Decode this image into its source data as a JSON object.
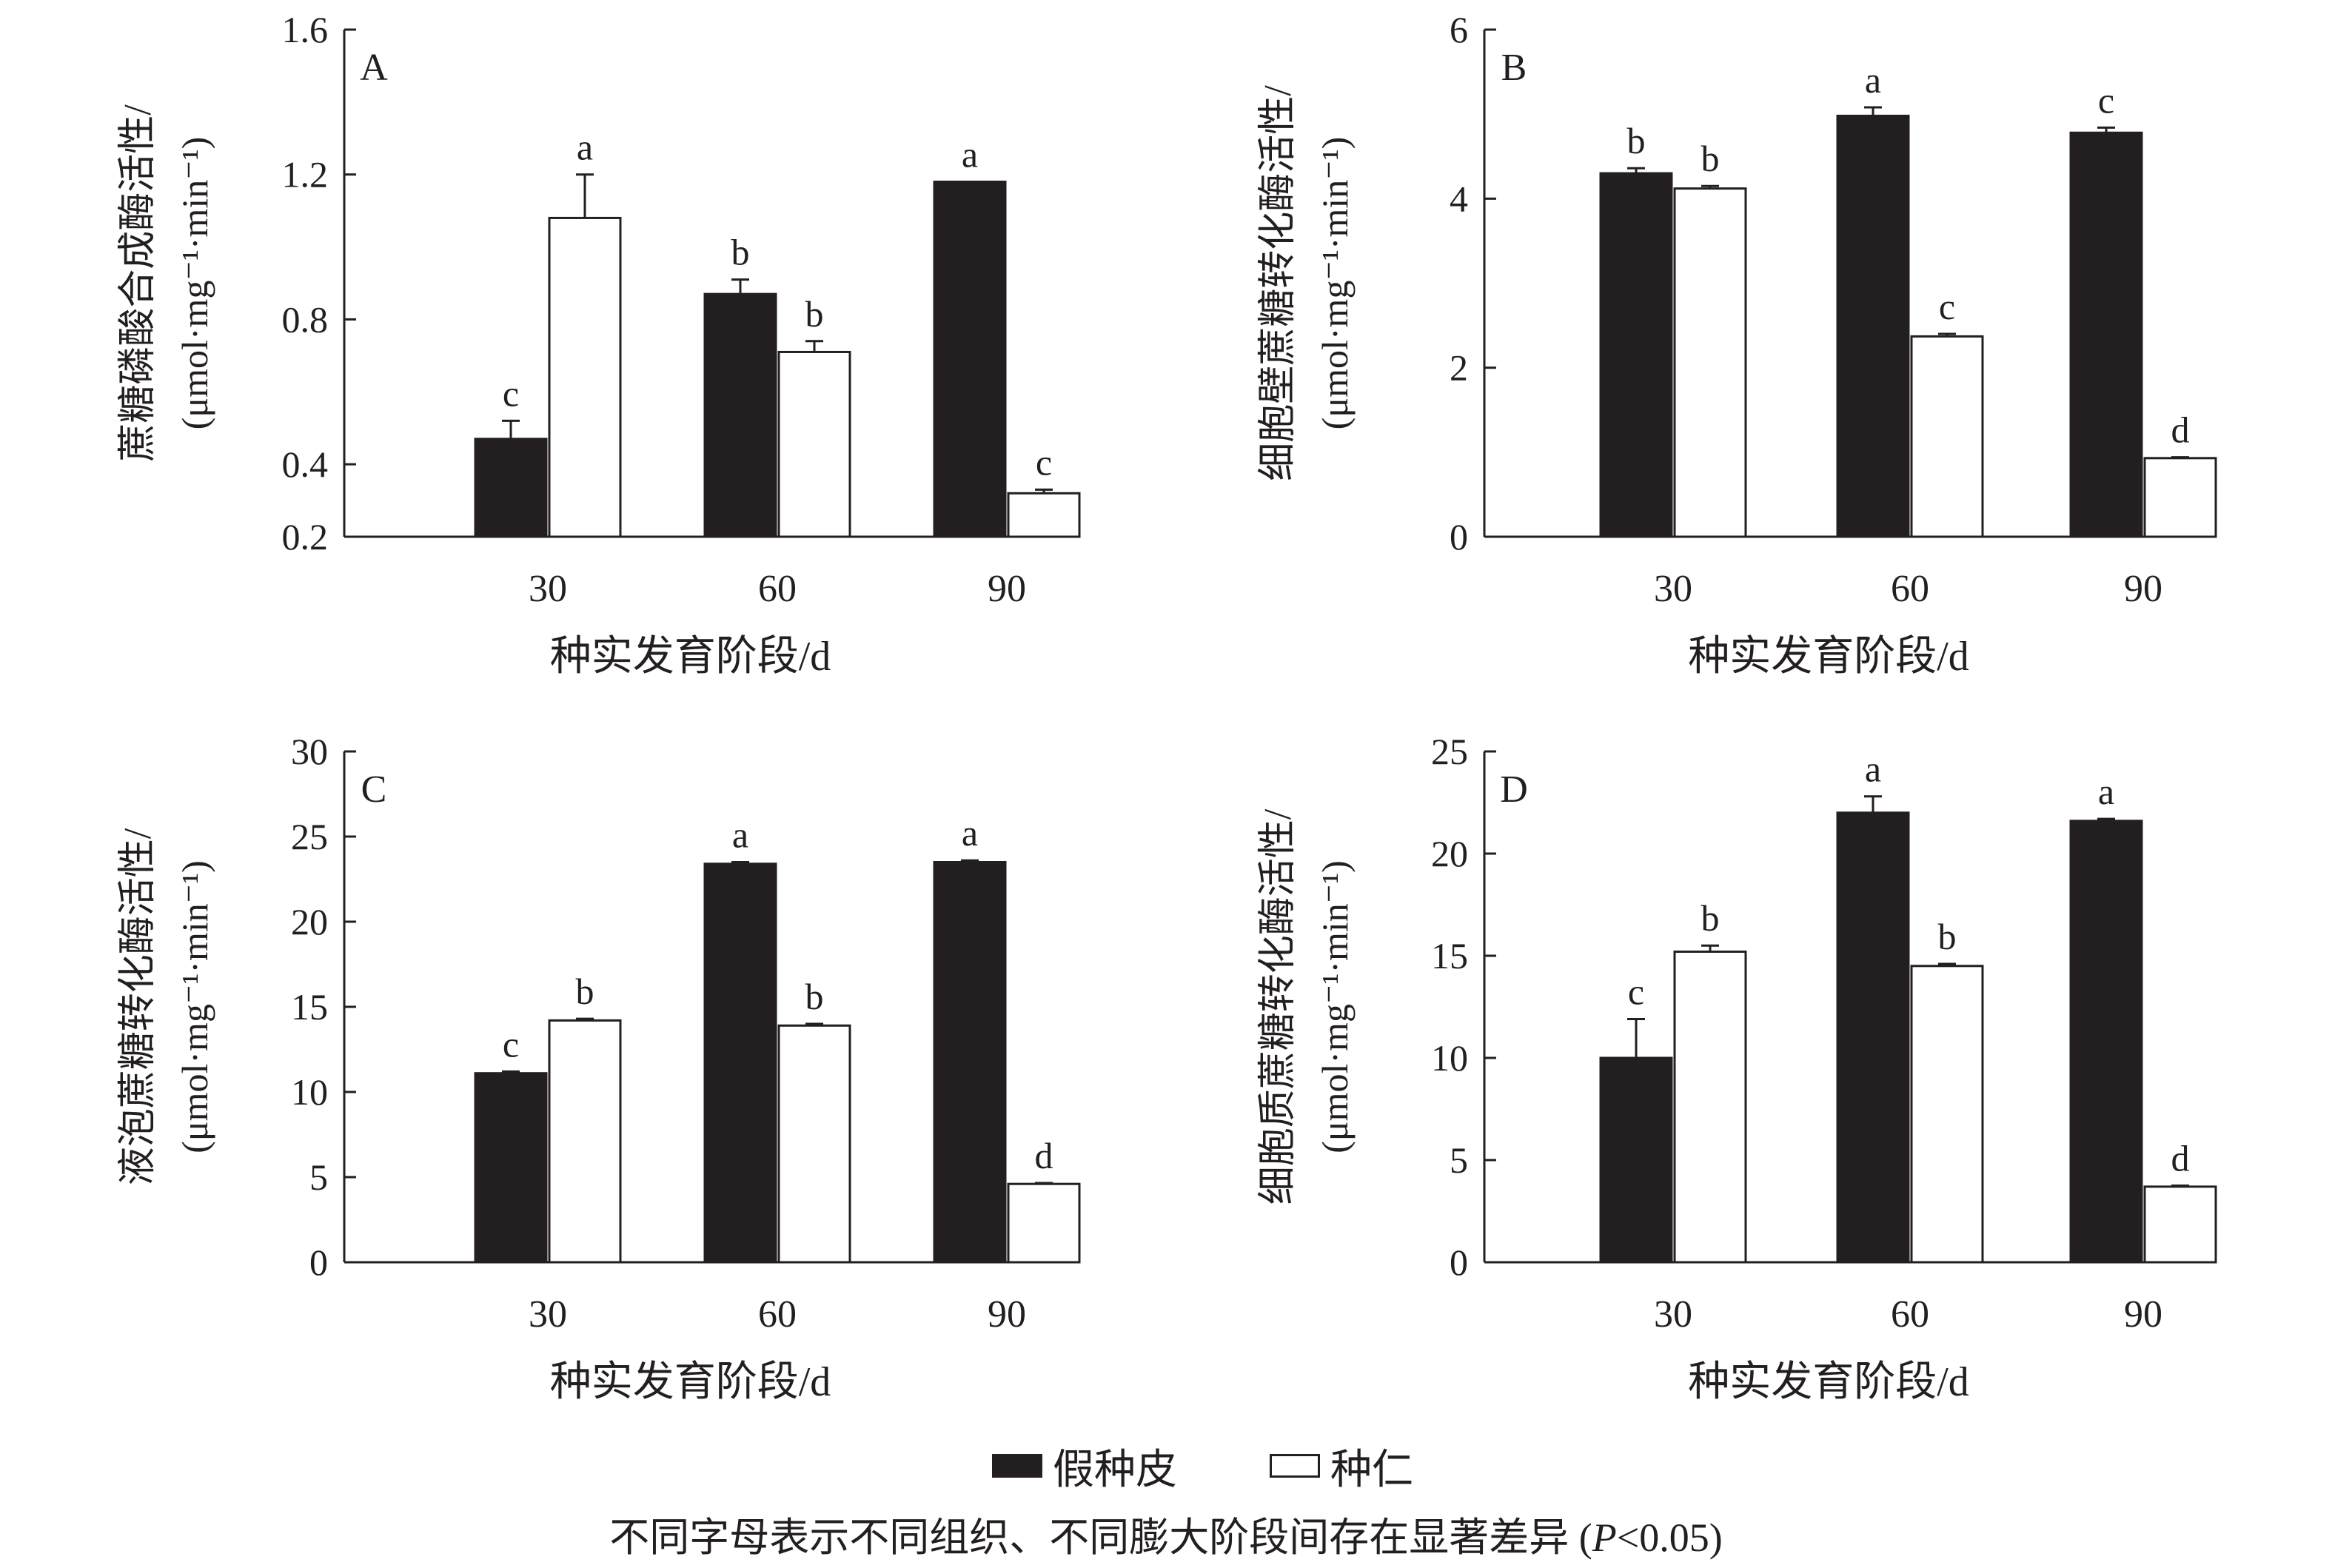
{
  "chart_data": [
    {
      "type": "bar",
      "panel_label": "A",
      "ylabel_line1": "蔗糖磷酸合成酶活性/",
      "ylabel_line2": "(μmol·mg⁻¹·min⁻¹)",
      "xlabel": "种实发育阶段/d",
      "categories": [
        "30",
        "60",
        "90"
      ],
      "ylim": [
        0.2,
        1.6
      ],
      "yticks": [
        0.2,
        0.4,
        0.8,
        1.2,
        1.6
      ],
      "ytick_labels": [
        "0.2",
        "0.4",
        "0.8",
        "1.2",
        "1.6"
      ],
      "series": [
        {
          "name": "假种皮",
          "color": "#231f20",
          "values": [
            0.47,
            0.87,
            1.18
          ],
          "errors": [
            0.05,
            0.04,
            0
          ],
          "letters": [
            "c",
            "b",
            "a"
          ]
        },
        {
          "name": "种仁",
          "color": "#ffffff",
          "values": [
            1.08,
            0.71,
            0.32
          ],
          "errors": [
            0.12,
            0.03,
            0.01
          ],
          "letters": [
            "a",
            "b",
            "c"
          ]
        }
      ]
    },
    {
      "type": "bar",
      "panel_label": "B",
      "ylabel_line1": "细胞壁蔗糖转化酶活性/",
      "ylabel_line2": "(μmol·mg⁻¹·min⁻¹)",
      "xlabel": "种实发育阶段/d",
      "categories": [
        "30",
        "60",
        "90"
      ],
      "ylim": [
        0,
        6
      ],
      "yticks": [
        0,
        2,
        4,
        6
      ],
      "ytick_labels": [
        "0",
        "2",
        "4",
        "6"
      ],
      "series": [
        {
          "name": "假种皮",
          "color": "#231f20",
          "values": [
            4.3,
            4.98,
            4.78
          ],
          "errors": [
            0.06,
            0.1,
            0.06
          ],
          "letters": [
            "b",
            "a",
            "c"
          ]
        },
        {
          "name": "种仁",
          "color": "#ffffff",
          "values": [
            4.12,
            2.37,
            0.93
          ],
          "errors": [
            0.03,
            0.03,
            0.01
          ],
          "letters": [
            "b",
            "c",
            "d"
          ]
        }
      ]
    },
    {
      "type": "bar",
      "panel_label": "C",
      "ylabel_line1": "液泡蔗糖转化酶活性/",
      "ylabel_line2": "(μmol·mg⁻¹·min⁻¹)",
      "xlabel": "种实发育阶段/d",
      "categories": [
        "30",
        "60",
        "90"
      ],
      "ylim": [
        0,
        30
      ],
      "yticks": [
        0,
        5,
        10,
        15,
        20,
        25,
        30
      ],
      "ytick_labels": [
        "0",
        "5",
        "10",
        "15",
        "20",
        "25",
        "30"
      ],
      "series": [
        {
          "name": "假种皮",
          "color": "#231f20",
          "values": [
            11.1,
            23.4,
            23.5
          ],
          "errors": [
            0.1,
            0.1,
            0.1
          ],
          "letters": [
            "c",
            "a",
            "a"
          ]
        },
        {
          "name": "种仁",
          "color": "#ffffff",
          "values": [
            14.2,
            13.9,
            4.6
          ],
          "errors": [
            0.1,
            0.1,
            0.05
          ],
          "letters": [
            "b",
            "b",
            "d"
          ]
        }
      ]
    },
    {
      "type": "bar",
      "panel_label": "D",
      "ylabel_line1": "细胞质蔗糖转化酶活性/",
      "ylabel_line2": "(μmol·mg⁻¹·min⁻¹)",
      "xlabel": "种实发育阶段/d",
      "categories": [
        "30",
        "60",
        "90"
      ],
      "ylim": [
        0,
        25
      ],
      "yticks": [
        0,
        5,
        10,
        15,
        20,
        25
      ],
      "ytick_labels": [
        "0",
        "5",
        "10",
        "15",
        "20",
        "25"
      ],
      "series": [
        {
          "name": "假种皮",
          "color": "#231f20",
          "values": [
            10.0,
            22.0,
            21.6
          ],
          "errors": [
            1.9,
            0.8,
            0.1
          ],
          "letters": [
            "c",
            "a",
            "a"
          ]
        },
        {
          "name": "种仁",
          "color": "#ffffff",
          "values": [
            15.2,
            14.5,
            3.7
          ],
          "errors": [
            0.3,
            0.1,
            0.05
          ],
          "letters": [
            "b",
            "b",
            "d"
          ]
        }
      ]
    }
  ],
  "legend": {
    "items": [
      {
        "label": "假种皮",
        "color": "#231f20"
      },
      {
        "label": "种仁",
        "color": "#ffffff"
      }
    ]
  },
  "caption": {
    "text": "不同字母表示不同组织、不同膨大阶段间存在显著差异",
    "stat_prefix": "(",
    "stat_italic": "P",
    "stat_suffix": "<0.05)"
  }
}
